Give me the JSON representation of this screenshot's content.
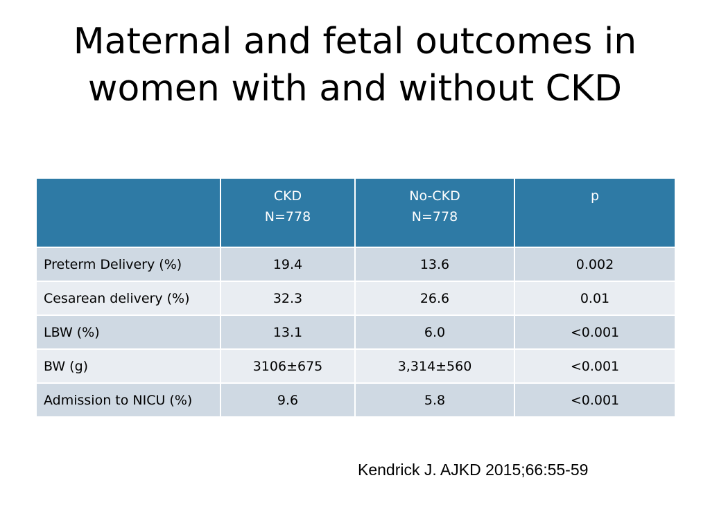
{
  "slide": {
    "title_line1": "Maternal and fetal outcomes in",
    "title_line2": "women with and without CKD"
  },
  "table": {
    "header": {
      "col0": "",
      "col1_line1": "CKD",
      "col1_line2": "N=778",
      "col2_line1": "No-CKD",
      "col2_line2": "N=778",
      "col3_line1": "p"
    },
    "rows": [
      {
        "label": "Preterm Delivery (%)",
        "ckd": "19.4",
        "no_ckd": "13.6",
        "p": "0.002"
      },
      {
        "label": "Cesarean delivery (%)",
        "ckd": "32.3",
        "no_ckd": "26.6",
        "p": "0.01"
      },
      {
        "label": "LBW (%)",
        "ckd": "13.1",
        "no_ckd": "6.0",
        "p": "<0.001"
      },
      {
        "label": "BW (g)",
        "ckd": "3106±675",
        "no_ckd": "3,314±560",
        "p": "<0.001"
      },
      {
        "label": "Admission to NICU (%)",
        "ckd": "9.6",
        "no_ckd": "5.8",
        "p": "<0.001"
      }
    ]
  },
  "citation": "Kendrick J. AJKD 2015;66:55-59",
  "colors": {
    "header_bg": "#2e7aa5",
    "row_dark": "#cfd9e3",
    "row_light": "#e9edf2"
  }
}
